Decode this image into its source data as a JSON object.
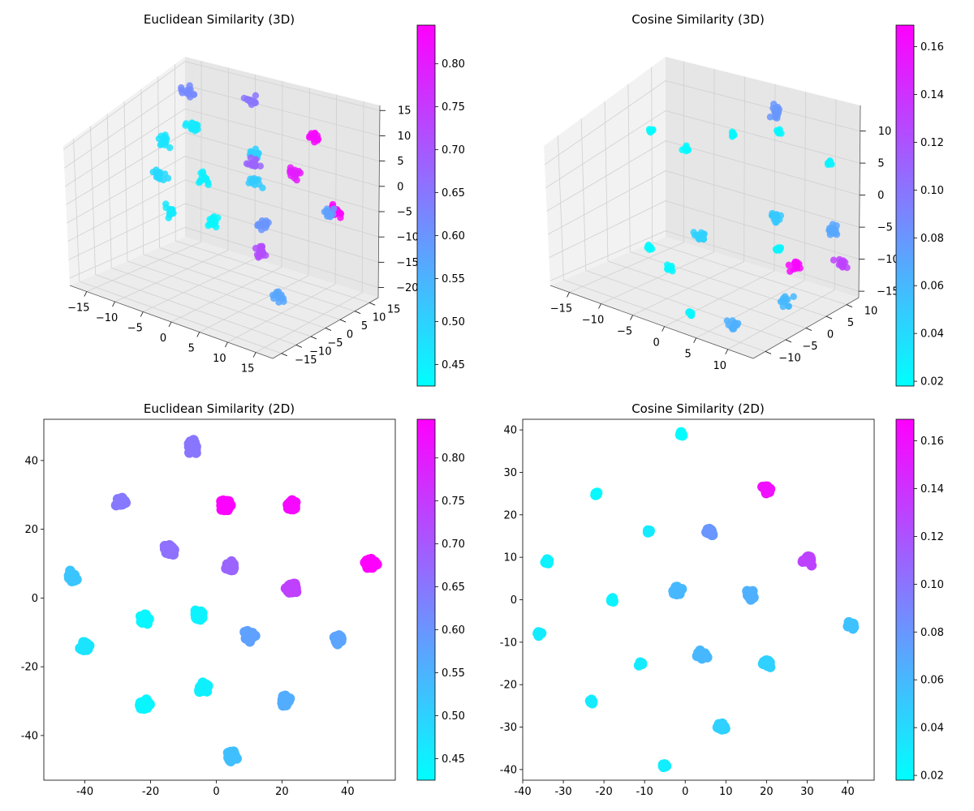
{
  "chart_data": [
    {
      "type": "scatter",
      "projection": "3d",
      "title": "Euclidean Similarity (3D)",
      "colormap": [
        "#00ffff",
        "#ff00ff"
      ],
      "colorbar": {
        "range": [
          0.425,
          0.845
        ],
        "ticks": [
          "0.45",
          "0.50",
          "0.55",
          "0.60",
          "0.65",
          "0.70",
          "0.75",
          "0.80"
        ]
      },
      "x_ticks": [
        "−15",
        "−10",
        "−5",
        "0",
        "5",
        "10",
        "15"
      ],
      "y_ticks": [
        "−15",
        "−10",
        "−5",
        "0",
        "5",
        "10",
        "15"
      ],
      "z_ticks": [
        "−20",
        "−15",
        "−10",
        "−5",
        "0",
        "5",
        "10",
        "15"
      ],
      "xlim": [
        -18,
        18
      ],
      "ylim": [
        -18,
        18
      ],
      "zlim": [
        -22,
        16
      ],
      "clusters": [
        {
          "x": -12,
          "y": 10,
          "z": 6,
          "v": 0.46,
          "n": 18,
          "s": 1.0
        },
        {
          "x": -8,
          "y": 6,
          "z": -2,
          "v": 0.45,
          "n": 14,
          "s": 1.0
        },
        {
          "x": -4,
          "y": 2,
          "z": -8,
          "v": 0.44,
          "n": 16,
          "s": 1.0
        },
        {
          "x": -14,
          "y": 4,
          "z": 4,
          "v": 0.47,
          "n": 14,
          "s": 1.0
        },
        {
          "x": -10,
          "y": -4,
          "z": 1,
          "v": 0.49,
          "n": 14,
          "s": 1.0
        },
        {
          "x": -6,
          "y": -8,
          "z": -4,
          "v": 0.46,
          "n": 16,
          "s": 1.0
        },
        {
          "x": -2,
          "y": 12,
          "z": 4,
          "v": 0.5,
          "n": 14,
          "s": 1.0
        },
        {
          "x": 0,
          "y": 8,
          "z": 0,
          "v": 0.51,
          "n": 14,
          "s": 1.0
        },
        {
          "x": -14,
          "y": 12,
          "z": 12,
          "v": 0.62,
          "n": 14,
          "s": 1.0
        },
        {
          "x": -4,
          "y": 14,
          "z": 14,
          "v": 0.65,
          "n": 14,
          "s": 1.0
        },
        {
          "x": 2,
          "y": 4,
          "z": 6,
          "v": 0.68,
          "n": 14,
          "s": 1.0
        },
        {
          "x": 6,
          "y": 0,
          "z": -4,
          "v": 0.6,
          "n": 14,
          "s": 1.0
        },
        {
          "x": 8,
          "y": -4,
          "z": -8,
          "v": 0.72,
          "n": 16,
          "s": 1.0
        },
        {
          "x": 14,
          "y": 6,
          "z": 0,
          "v": 0.58,
          "n": 14,
          "s": 1.0
        },
        {
          "x": 12,
          "y": -6,
          "z": -15,
          "v": 0.57,
          "n": 16,
          "s": 1.0
        },
        {
          "x": 8,
          "y": 12,
          "z": 12,
          "v": 0.83,
          "n": 14,
          "s": 1.0
        },
        {
          "x": 6,
          "y": 10,
          "z": 4,
          "v": 0.8,
          "n": 16,
          "s": 1.0
        },
        {
          "x": 12,
          "y": 12,
          "z": -2,
          "v": 0.84,
          "n": 20,
          "s": 1.0
        }
      ]
    },
    {
      "type": "scatter",
      "projection": "3d",
      "title": "Cosine Similarity (3D)",
      "colormap": [
        "#00ffff",
        "#ff00ff"
      ],
      "colorbar": {
        "range": [
          0.018,
          0.169
        ],
        "ticks": [
          "0.02",
          "0.04",
          "0.06",
          "0.08",
          "0.10",
          "0.12",
          "0.14",
          "0.16"
        ]
      },
      "x_ticks": [
        "−15",
        "−10",
        "−5",
        "0",
        "5",
        "10"
      ],
      "y_ticks": [
        "−10",
        "−5",
        "0",
        "5",
        "10"
      ],
      "z_ticks": [
        "−15",
        "−10",
        "−5",
        "0",
        "5",
        "10"
      ],
      "xlim": [
        -18,
        14
      ],
      "ylim": [
        -13,
        13
      ],
      "zlim": [
        -16,
        14
      ],
      "clusters": [
        {
          "x": -14,
          "y": 4,
          "z": 6,
          "v": 0.02,
          "n": 10,
          "s": 0.35
        },
        {
          "x": -10,
          "y": 6,
          "z": 4,
          "v": 0.021,
          "n": 10,
          "s": 0.35
        },
        {
          "x": -4,
          "y": 8,
          "z": 8,
          "v": 0.022,
          "n": 10,
          "s": 0.35
        },
        {
          "x": 2,
          "y": 10,
          "z": 10,
          "v": 0.023,
          "n": 10,
          "s": 0.35
        },
        {
          "x": -10,
          "y": -2,
          "z": -10,
          "v": 0.021,
          "n": 10,
          "s": 0.35
        },
        {
          "x": -4,
          "y": -6,
          "z": -10,
          "v": 0.022,
          "n": 10,
          "s": 0.35
        },
        {
          "x": 6,
          "y": 4,
          "z": -6,
          "v": 0.024,
          "n": 10,
          "s": 0.35
        },
        {
          "x": 2,
          "y": -10,
          "z": -14,
          "v": 0.023,
          "n": 10,
          "s": 0.35
        },
        {
          "x": 10,
          "y": 10,
          "z": 8,
          "v": 0.025,
          "n": 10,
          "s": 0.35
        },
        {
          "x": -2,
          "y": -2,
          "z": -5,
          "v": 0.045,
          "n": 14,
          "s": 0.9
        },
        {
          "x": 4,
          "y": 6,
          "z": -2,
          "v": 0.05,
          "n": 14,
          "s": 0.9
        },
        {
          "x": 10,
          "y": 0,
          "z": -12,
          "v": 0.06,
          "n": 14,
          "s": 0.9
        },
        {
          "x": 6,
          "y": -6,
          "z": -16,
          "v": 0.065,
          "n": 14,
          "s": 0.9
        },
        {
          "x": 12,
          "y": 8,
          "z": -2,
          "v": 0.07,
          "n": 14,
          "s": 0.9
        },
        {
          "x": 0,
          "y": 12,
          "z": 12,
          "v": 0.08,
          "n": 16,
          "s": 0.9
        },
        {
          "x": 12,
          "y": 10,
          "z": -8,
          "v": 0.13,
          "n": 14,
          "s": 0.9
        },
        {
          "x": 6,
          "y": 8,
          "z": -10,
          "v": 0.165,
          "n": 14,
          "s": 0.9
        }
      ]
    },
    {
      "type": "scatter",
      "projection": "2d",
      "title": "Euclidean Similarity (2D)",
      "colormap": [
        "#00ffff",
        "#ff00ff"
      ],
      "colorbar": {
        "range": [
          0.425,
          0.845
        ],
        "ticks": [
          "0.45",
          "0.50",
          "0.55",
          "0.60",
          "0.65",
          "0.70",
          "0.75",
          "0.80"
        ]
      },
      "xlim": [
        -52.5,
        54.5
      ],
      "ylim": [
        -53,
        52
      ],
      "x_ticks": [
        -40,
        -20,
        0,
        20,
        40
      ],
      "y_ticks": [
        -40,
        -20,
        0,
        20,
        40
      ],
      "clusters": [
        {
          "x": -7,
          "y": 44,
          "v": 0.65,
          "n": 40,
          "s": 1.3
        },
        {
          "x": -29,
          "y": 28,
          "v": 0.645,
          "n": 40,
          "s": 1.3
        },
        {
          "x": 3,
          "y": 27,
          "v": 0.84,
          "n": 40,
          "s": 1.3
        },
        {
          "x": 23,
          "y": 27,
          "v": 0.83,
          "n": 40,
          "s": 1.3
        },
        {
          "x": -14,
          "y": 14,
          "v": 0.66,
          "n": 40,
          "s": 1.3
        },
        {
          "x": 4,
          "y": 9,
          "v": 0.68,
          "n": 40,
          "s": 1.3
        },
        {
          "x": 47,
          "y": 10,
          "v": 0.845,
          "n": 40,
          "s": 1.3
        },
        {
          "x": -44,
          "y": 6,
          "v": 0.52,
          "n": 40,
          "s": 1.3
        },
        {
          "x": 23,
          "y": 3,
          "v": 0.74,
          "n": 40,
          "s": 1.3
        },
        {
          "x": -22,
          "y": -6,
          "v": 0.44,
          "n": 40,
          "s": 1.3
        },
        {
          "x": -5,
          "y": -5,
          "v": 0.445,
          "n": 40,
          "s": 1.3
        },
        {
          "x": 10,
          "y": -11,
          "v": 0.58,
          "n": 40,
          "s": 1.3
        },
        {
          "x": 37,
          "y": -12,
          "v": 0.575,
          "n": 40,
          "s": 1.3
        },
        {
          "x": -40,
          "y": -14,
          "v": 0.47,
          "n": 40,
          "s": 1.3
        },
        {
          "x": -4,
          "y": -26,
          "v": 0.45,
          "n": 40,
          "s": 1.3
        },
        {
          "x": -22,
          "y": -31,
          "v": 0.44,
          "n": 40,
          "s": 1.3
        },
        {
          "x": 21,
          "y": -30,
          "v": 0.56,
          "n": 40,
          "s": 1.3
        },
        {
          "x": 5,
          "y": -46,
          "v": 0.53,
          "n": 40,
          "s": 1.3
        }
      ]
    },
    {
      "type": "scatter",
      "projection": "2d",
      "title": "Cosine Similarity (2D)",
      "colormap": [
        "#00ffff",
        "#ff00ff"
      ],
      "colorbar": {
        "range": [
          0.018,
          0.169
        ],
        "ticks": [
          "0.02",
          "0.04",
          "0.06",
          "0.08",
          "0.10",
          "0.12",
          "0.14",
          "0.16"
        ]
      },
      "xlim": [
        -40,
        46.5
      ],
      "ylim": [
        -42.5,
        42.5
      ],
      "x_ticks": [
        -40,
        -30,
        -20,
        -10,
        0,
        10,
        20,
        30,
        40
      ],
      "y_ticks": [
        -40,
        -30,
        -20,
        -10,
        0,
        10,
        20,
        30,
        40
      ],
      "clusters": [
        {
          "x": -1,
          "y": 39,
          "v": 0.02,
          "n": 12,
          "s": 0.4
        },
        {
          "x": -22,
          "y": 25,
          "v": 0.022,
          "n": 12,
          "s": 0.4
        },
        {
          "x": 20,
          "y": 26,
          "v": 0.16,
          "n": 18,
          "s": 0.9
        },
        {
          "x": 6,
          "y": 16,
          "v": 0.08,
          "n": 22,
          "s": 0.9
        },
        {
          "x": -9,
          "y": 16,
          "v": 0.03,
          "n": 12,
          "s": 0.4
        },
        {
          "x": -34,
          "y": 9,
          "v": 0.025,
          "n": 12,
          "s": 0.4
        },
        {
          "x": 30,
          "y": 9.5,
          "v": 0.13,
          "n": 22,
          "s": 0.9
        },
        {
          "x": -18,
          "y": 0,
          "v": 0.025,
          "n": 12,
          "s": 0.4
        },
        {
          "x": -2,
          "y": 2,
          "v": 0.06,
          "n": 22,
          "s": 0.9
        },
        {
          "x": 16,
          "y": 1,
          "v": 0.065,
          "n": 22,
          "s": 0.9
        },
        {
          "x": 41,
          "y": -6,
          "v": 0.055,
          "n": 14,
          "s": 0.8
        },
        {
          "x": -36,
          "y": -8,
          "v": 0.03,
          "n": 12,
          "s": 0.4
        },
        {
          "x": 4,
          "y": -13,
          "v": 0.06,
          "n": 20,
          "s": 0.9
        },
        {
          "x": -11,
          "y": -15,
          "v": 0.03,
          "n": 12,
          "s": 0.4
        },
        {
          "x": 20,
          "y": -15,
          "v": 0.045,
          "n": 22,
          "s": 0.9
        },
        {
          "x": -23,
          "y": -24,
          "v": 0.03,
          "n": 12,
          "s": 0.4
        },
        {
          "x": 9,
          "y": -30,
          "v": 0.045,
          "n": 22,
          "s": 0.9
        },
        {
          "x": -5,
          "y": -39,
          "v": 0.028,
          "n": 12,
          "s": 0.4
        }
      ]
    }
  ]
}
